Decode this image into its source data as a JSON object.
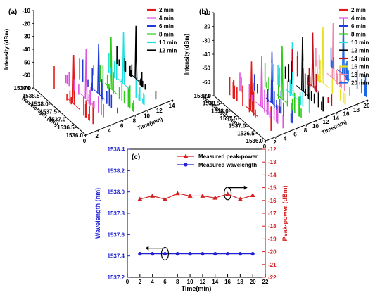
{
  "chart_data": [
    {
      "id": "a",
      "type": "waterfall-3d",
      "panel_label": "(a)",
      "xlabel": "Wavelength (nm)",
      "ylabel": "Intensity (dBm)",
      "zlabel": "Time(min)",
      "y_ticks": [
        "-10",
        "-20",
        "-30",
        "-40",
        "-50",
        "-60",
        "-70"
      ],
      "x_ticks": [
        "1539.0",
        "1538.5",
        "1538.0",
        "1537.5",
        "1537.0",
        "1536.5",
        "1536.0"
      ],
      "z_ticks": [
        "0",
        "2",
        "4",
        "6",
        "8",
        "10",
        "12",
        "14"
      ],
      "ylim": [
        -70,
        -10
      ],
      "xlim": [
        1536.0,
        1539.0
      ],
      "zlim": [
        0,
        14
      ],
      "series": [
        {
          "name": "2   min",
          "time": 2,
          "color": "#e31a1c",
          "peak_wavelength": 1537.42,
          "peak_intensity": -29
        },
        {
          "name": "4   min",
          "time": 4,
          "color": "#e052e0",
          "peak_wavelength": 1537.42,
          "peak_intensity": -28
        },
        {
          "name": "6   min",
          "time": 6,
          "color": "#1f3ad6",
          "peak_wavelength": 1537.42,
          "peak_intensity": -28
        },
        {
          "name": "8   min",
          "time": 8,
          "color": "#2ecc1a",
          "peak_wavelength": 1537.42,
          "peak_intensity": -27
        },
        {
          "name": "10 min",
          "time": 10,
          "color": "#22e0e0",
          "peak_wavelength": 1537.42,
          "peak_intensity": -27
        },
        {
          "name": "12 min",
          "time": 12,
          "color": "#000000",
          "peak_wavelength": 1537.42,
          "peak_intensity": -26
        }
      ]
    },
    {
      "id": "b",
      "type": "waterfall-3d",
      "panel_label": "(b)",
      "xlabel": "Wavelength (nm)",
      "ylabel": "Intensity (dBm)",
      "zlabel": "Time(min)",
      "y_ticks": [
        "-10",
        "-20",
        "-30",
        "-40",
        "-50",
        "-60",
        "-70"
      ],
      "x_ticks": [
        "1539.0",
        "1538.5",
        "1538.0",
        "1537.5",
        "1537.0",
        "1536.5",
        "1536.0"
      ],
      "z_ticks": [
        "0",
        "2",
        "4",
        "6",
        "8",
        "10",
        "12",
        "14",
        "16",
        "18",
        "20"
      ],
      "ylim": [
        -70,
        -10
      ],
      "xlim": [
        1536.0,
        1539.0
      ],
      "zlim": [
        0,
        20
      ],
      "series": [
        {
          "name": "2   min",
          "time": 2,
          "color": "#e31a1c",
          "peak_wavelength": 1537.42,
          "peak_intensity": -31
        },
        {
          "name": "4   min",
          "time": 4,
          "color": "#e052e0",
          "peak_wavelength": 1537.42,
          "peak_intensity": -30
        },
        {
          "name": "6   min",
          "time": 6,
          "color": "#1f3ad6",
          "peak_wavelength": 1537.42,
          "peak_intensity": -30
        },
        {
          "name": "8   min",
          "time": 8,
          "color": "#2ecc1a",
          "peak_wavelength": 1537.42,
          "peak_intensity": -29
        },
        {
          "name": "10 min",
          "time": 10,
          "color": "#22e0e0",
          "peak_wavelength": 1537.42,
          "peak_intensity": -29
        },
        {
          "name": "12 min",
          "time": 12,
          "color": "#000000",
          "peak_wavelength": 1537.42,
          "peak_intensity": -28
        },
        {
          "name": "14 min",
          "time": 14,
          "color": "#c01020",
          "peak_wavelength": 1537.42,
          "peak_intensity": -28
        },
        {
          "name": "16 min",
          "time": 16,
          "color": "#e8e020",
          "peak_wavelength": 1537.42,
          "peak_intensity": -27
        },
        {
          "name": "18 min",
          "time": 18,
          "color": "#f08aa8",
          "peak_wavelength": 1537.42,
          "peak_intensity": -27
        },
        {
          "name": "20 min",
          "time": 20,
          "color": "#1a66e6",
          "peak_wavelength": 1537.42,
          "peak_intensity": -26
        }
      ]
    },
    {
      "id": "c",
      "type": "line",
      "panel_label": "(c)",
      "xlabel": "Time(min)",
      "ylabel": "Wavelength (nm)",
      "y2label": "Peak-power (dBm)",
      "xlim": [
        0,
        22
      ],
      "ylim": [
        1537.2,
        1538.4
      ],
      "y2lim": [
        -22,
        -12
      ],
      "x_ticks": [
        0,
        2,
        4,
        6,
        8,
        10,
        12,
        14,
        16,
        18,
        20,
        22
      ],
      "y_ticks": [
        "1537.2",
        "1537.4",
        "1537.6",
        "1537.8",
        "1538.0",
        "1538.2",
        "1538.4"
      ],
      "y2_ticks": [
        "-12",
        "-13",
        "-14",
        "-15",
        "-16",
        "-17",
        "-18",
        "-19",
        "-20",
        "-21",
        "-22"
      ],
      "x": [
        2,
        4,
        6,
        8,
        10,
        12,
        14,
        16,
        18,
        20
      ],
      "series": [
        {
          "name": "Measured peak-power",
          "axis": "right",
          "color": "#d42020",
          "marker": "triangle",
          "values": [
            -15.9,
            -15.65,
            -15.9,
            -15.45,
            -15.65,
            -15.65,
            -15.8,
            -15.5,
            -15.9,
            -15.6
          ]
        },
        {
          "name": "Measured  wavelength",
          "axis": "left",
          "color": "#2020d4",
          "marker": "circle",
          "values": [
            1537.42,
            1537.42,
            1537.42,
            1537.42,
            1537.42,
            1537.42,
            1537.42,
            1537.42,
            1537.42,
            1537.42
          ]
        }
      ]
    }
  ]
}
